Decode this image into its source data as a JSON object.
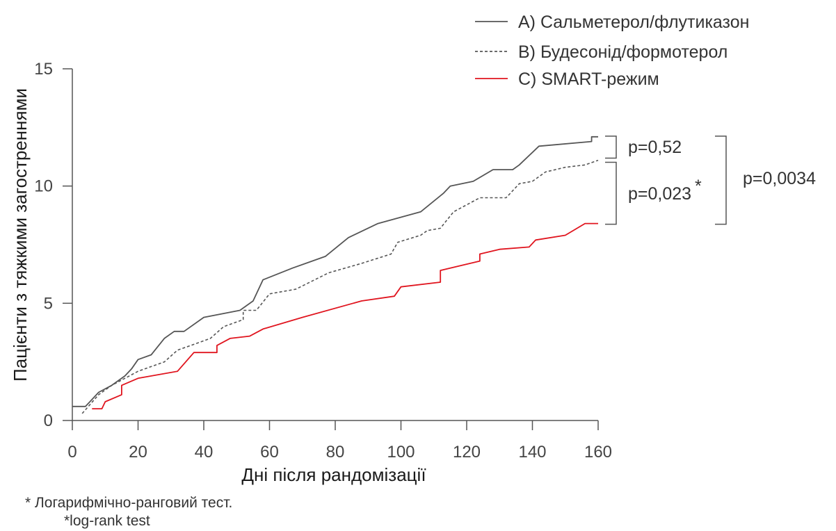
{
  "chart_data": {
    "type": "line",
    "xlabel": "Дні після рандомізації",
    "ylabel": "Пацієнти з тяжкими загостреннями",
    "xlim": [
      0,
      160
    ],
    "ylim": [
      0,
      15
    ],
    "xticks": [
      0,
      20,
      40,
      60,
      80,
      100,
      120,
      140,
      160
    ],
    "yticks": [
      0,
      5,
      10,
      15
    ],
    "grid": false,
    "legend_position": "top-right",
    "series": [
      {
        "name": "А)  Сальметерол/флутиказон",
        "color": "#555555",
        "style": "solid",
        "points": [
          [
            0,
            0.6
          ],
          [
            4,
            0.6
          ],
          [
            8,
            1.2
          ],
          [
            12,
            1.5
          ],
          [
            16,
            1.9
          ],
          [
            18,
            2.2
          ],
          [
            20,
            2.6
          ],
          [
            24,
            2.8
          ],
          [
            28,
            3.5
          ],
          [
            31,
            3.8
          ],
          [
            34,
            3.8
          ],
          [
            40,
            4.4
          ],
          [
            51,
            4.7
          ],
          [
            55,
            5.1
          ],
          [
            58,
            6.0
          ],
          [
            67,
            6.5
          ],
          [
            77,
            7.0
          ],
          [
            84,
            7.8
          ],
          [
            93,
            8.4
          ],
          [
            106,
            8.9
          ],
          [
            113,
            9.7
          ],
          [
            115,
            10.0
          ],
          [
            122,
            10.2
          ],
          [
            128,
            10.7
          ],
          [
            134,
            10.7
          ],
          [
            136,
            10.9
          ],
          [
            142,
            11.7
          ],
          [
            158,
            11.9
          ],
          [
            158,
            12.1
          ],
          [
            160,
            12.1
          ]
        ]
      },
      {
        "name": "В)  Будесонід/формотерол",
        "color": "#555555",
        "style": "dashed",
        "points": [
          [
            3,
            0.3
          ],
          [
            8,
            1.1
          ],
          [
            12,
            1.5
          ],
          [
            16,
            1.8
          ],
          [
            20,
            2.1
          ],
          [
            24,
            2.3
          ],
          [
            28,
            2.5
          ],
          [
            32,
            3.0
          ],
          [
            36,
            3.2
          ],
          [
            42,
            3.5
          ],
          [
            46,
            4.0
          ],
          [
            52,
            4.3
          ],
          [
            52,
            4.7
          ],
          [
            56,
            4.7
          ],
          [
            60,
            5.4
          ],
          [
            68,
            5.6
          ],
          [
            78,
            6.3
          ],
          [
            88,
            6.7
          ],
          [
            97,
            7.1
          ],
          [
            99,
            7.6
          ],
          [
            106,
            7.9
          ],
          [
            108,
            8.1
          ],
          [
            112,
            8.2
          ],
          [
            116,
            8.9
          ],
          [
            120,
            9.2
          ],
          [
            124,
            9.5
          ],
          [
            132,
            9.5
          ],
          [
            136,
            10.1
          ],
          [
            140,
            10.2
          ],
          [
            144,
            10.6
          ],
          [
            150,
            10.8
          ],
          [
            156,
            10.9
          ],
          [
            160,
            11.1
          ]
        ]
      },
      {
        "name": "С)  SMART-режим",
        "color": "#e0141e",
        "style": "solid",
        "points": [
          [
            6,
            0.5
          ],
          [
            9,
            0.5
          ],
          [
            10,
            0.8
          ],
          [
            15,
            1.1
          ],
          [
            15,
            1.5
          ],
          [
            20,
            1.8
          ],
          [
            32,
            2.1
          ],
          [
            37,
            2.9
          ],
          [
            44,
            2.9
          ],
          [
            44,
            3.2
          ],
          [
            48,
            3.5
          ],
          [
            54,
            3.6
          ],
          [
            58,
            3.9
          ],
          [
            70,
            4.4
          ],
          [
            88,
            5.1
          ],
          [
            98,
            5.3
          ],
          [
            100,
            5.7
          ],
          [
            112,
            5.9
          ],
          [
            112,
            6.4
          ],
          [
            124,
            6.8
          ],
          [
            124,
            7.1
          ],
          [
            130,
            7.3
          ],
          [
            139,
            7.4
          ],
          [
            141,
            7.7
          ],
          [
            150,
            7.9
          ],
          [
            156,
            8.4
          ],
          [
            160,
            8.4
          ]
        ]
      }
    ],
    "annotations": [
      {
        "text": "p=0,52",
        "y_range": [
          11.1,
          12.1
        ]
      },
      {
        "text": "p=0,023",
        "marker": "*",
        "y_range": [
          8.4,
          11.1
        ]
      },
      {
        "text": "p=0,0034",
        "y_range": [
          8.4,
          12.1
        ]
      }
    ]
  },
  "footnotes": [
    "* Логарифмічно-ранговий тест.",
    "*log-rank test"
  ]
}
